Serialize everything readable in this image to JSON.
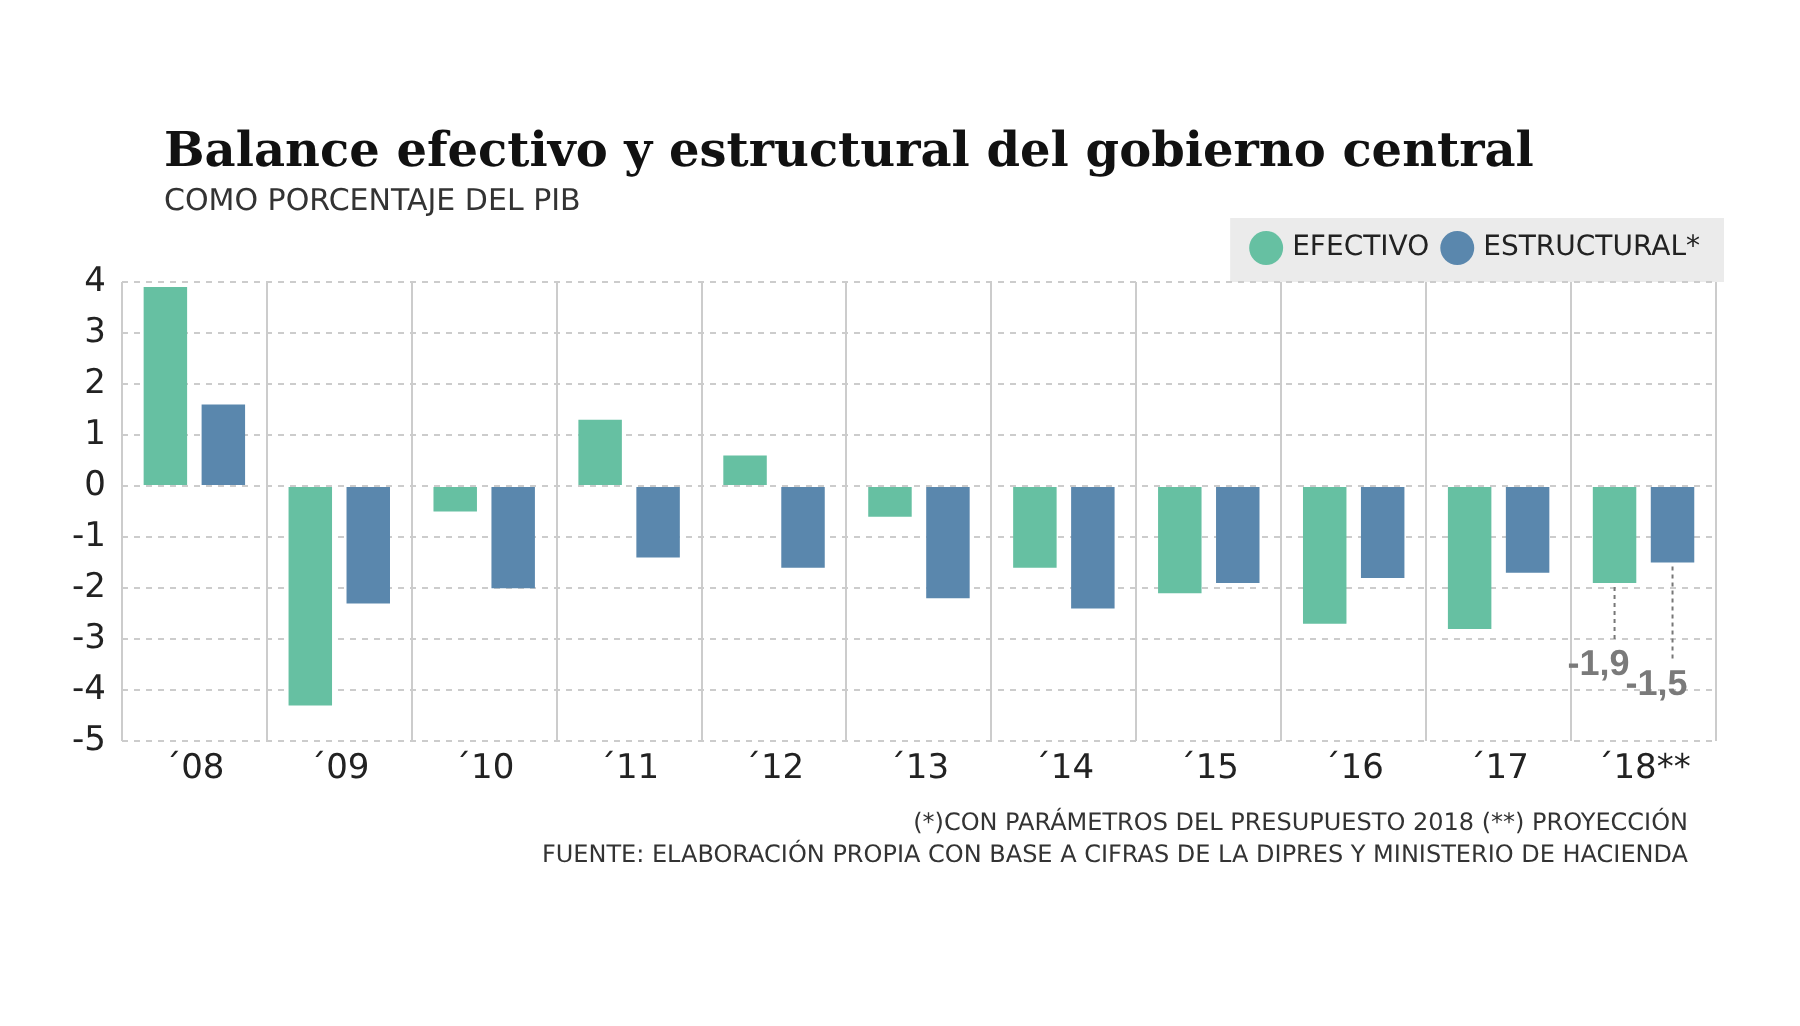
{
  "chart_data": {
    "type": "bar",
    "title": "Balance efectivo y estructural del gobierno central",
    "subtitle": "COMO PORCENTAJE DEL PIB",
    "categories": [
      "´08",
      "´09",
      "´10",
      "´11",
      "´12",
      "´13",
      "´14",
      "´15",
      "´16",
      "´17",
      "´18**"
    ],
    "series": [
      {
        "name": "EFECTIVO",
        "color": "#66c0a2",
        "values": [
          3.9,
          -4.3,
          -0.5,
          1.3,
          0.6,
          -0.6,
          -1.6,
          -2.1,
          -2.7,
          -2.8,
          -1.9
        ],
        "value_labels": [
          null,
          null,
          null,
          null,
          null,
          null,
          null,
          null,
          null,
          null,
          "-1,9"
        ]
      },
      {
        "name": "ESTRUCTURAL*",
        "color": "#5a87ad",
        "values": [
          1.6,
          -2.3,
          -2.0,
          -1.4,
          -1.6,
          -2.2,
          -2.4,
          -1.9,
          -1.8,
          -1.7,
          -1.5
        ],
        "value_labels": [
          null,
          null,
          null,
          null,
          null,
          null,
          null,
          null,
          null,
          null,
          "-1,5"
        ]
      }
    ],
    "ylim": [
      -5,
      4
    ],
    "yticks": [
      -5,
      -4,
      -3,
      -2,
      -1,
      0,
      1,
      2,
      3,
      4
    ],
    "grid": true,
    "legend": "top right",
    "annotations": [
      "(*)CON PARÁMETROS DEL PRESUPUESTO 2018 (**) PROYECCIÓN",
      "FUENTE: ELABORACIÓN PROPIA CON BASE A CIFRAS DE LA DIPRES Y MINISTERIO DE HACIENDA"
    ]
  }
}
